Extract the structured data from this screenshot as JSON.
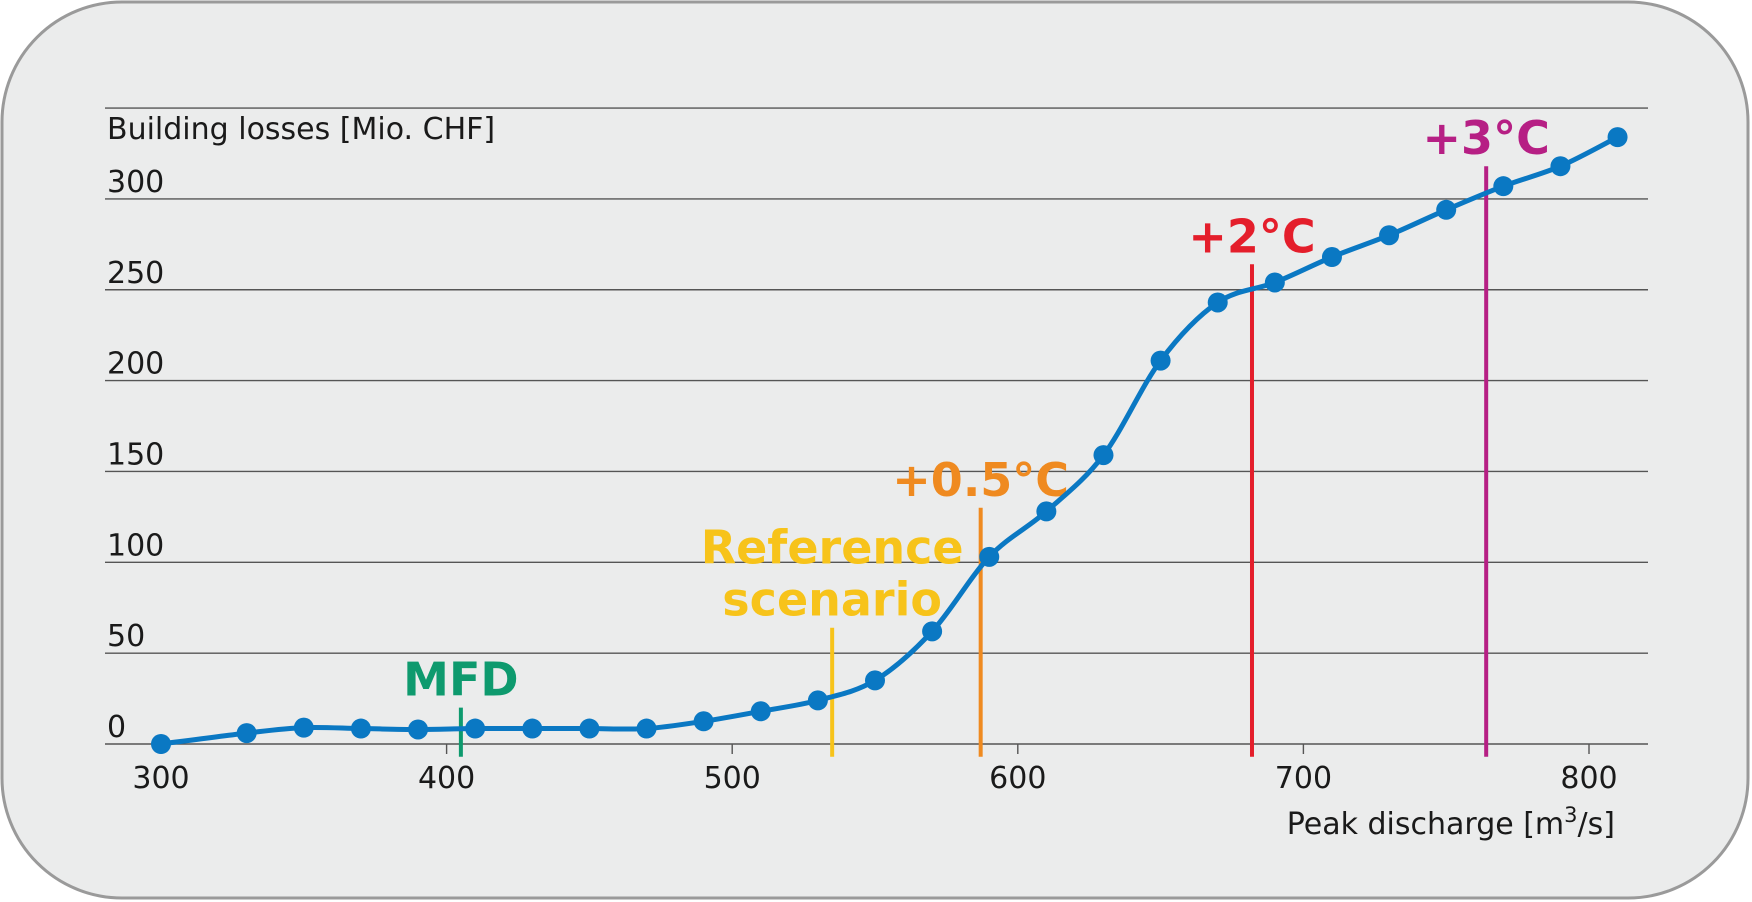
{
  "chart_data": {
    "type": "line",
    "ylabel": "Building losses [Mio. CHF]",
    "xlabel_base": "Peak discharge [m",
    "xlabel_sup": "3",
    "xlabel_tail": "/s]",
    "xlim": [
      300,
      800
    ],
    "ylim": [
      0,
      350
    ],
    "xticks": [
      300,
      400,
      500,
      600,
      700,
      800
    ],
    "yticks": [
      0,
      50,
      100,
      150,
      200,
      250,
      300
    ],
    "grid": true,
    "colors": {
      "background": "#ebecec",
      "border": "#9a9a9a",
      "grid": "#555555",
      "line": "#0a78c3"
    },
    "series": [
      {
        "x": [
          300,
          330,
          350,
          370,
          390,
          410,
          430,
          450,
          470,
          490,
          510,
          530,
          550,
          570,
          590,
          610,
          630,
          650,
          670,
          690,
          710,
          730,
          750,
          770,
          790,
          810
        ],
        "y": [
          0,
          6,
          9,
          8.5,
          8,
          8.5,
          8.5,
          8.5,
          8.5,
          12.5,
          18,
          24,
          35,
          62,
          103,
          128,
          159,
          211,
          243,
          254,
          268,
          280,
          294,
          307,
          318,
          334
        ]
      }
    ],
    "markers": [
      {
        "lines": [
          "MFD"
        ],
        "x": 405,
        "y_top": 20,
        "color": "#0e9a6e"
      },
      {
        "lines": [
          "Reference",
          "scenario"
        ],
        "x": 535,
        "y_top": 64,
        "color": "#f7c31a"
      },
      {
        "lines": [
          "+0.5°C"
        ],
        "x": 587,
        "y_top": 130,
        "color": "#ef8a20"
      },
      {
        "lines": [
          "+2°C"
        ],
        "x": 682,
        "y_top": 264,
        "color": "#e41e2b"
      },
      {
        "lines": [
          "+3°C"
        ],
        "x": 764,
        "y_top": 318,
        "color": "#b61f84"
      }
    ]
  }
}
